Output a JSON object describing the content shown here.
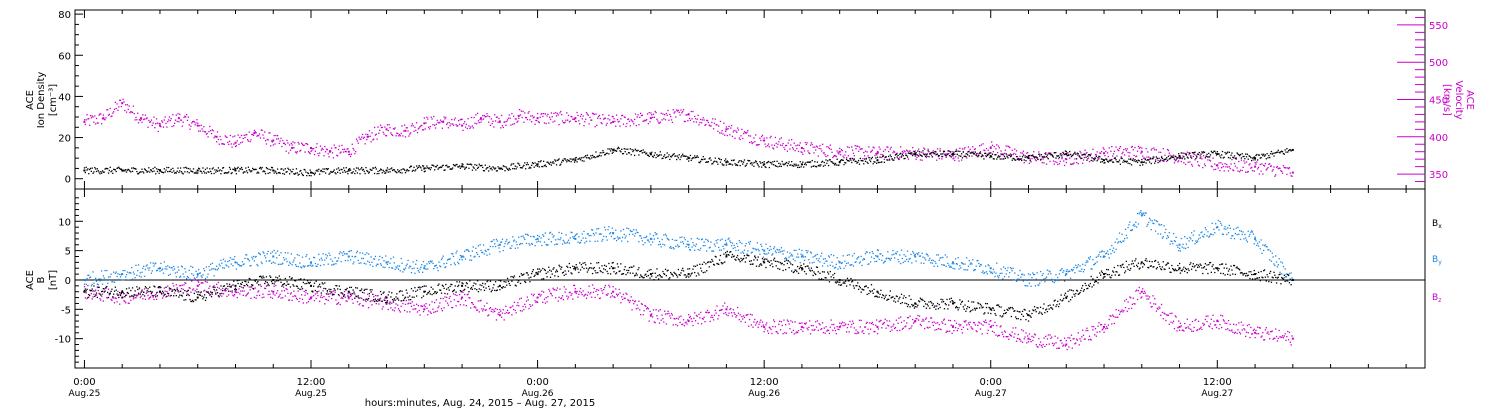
{
  "chart_data": [
    {
      "type": "scatter",
      "panel": "plasma",
      "ylabel": [
        "ACE",
        "Ion Density",
        "[cm⁻³]"
      ],
      "y2label": [
        "ACE",
        "Velocity",
        "[km/s]"
      ],
      "ylim": [
        -5,
        82
      ],
      "yticks": [
        0,
        20,
        40,
        60,
        80
      ],
      "y2lim": [
        330,
        570
      ],
      "y2ticks": [
        350,
        400,
        450,
        500,
        550
      ],
      "colors": {
        "density": "#000000",
        "velocity": "#cc00cc"
      },
      "series": [
        {
          "name": "Ion Density",
          "axis": "left",
          "x": [
            0,
            2,
            4,
            6,
            8,
            10,
            12,
            14,
            16,
            18,
            20,
            22,
            24,
            26,
            28,
            30,
            32,
            34,
            36,
            38,
            40,
            42,
            44,
            46,
            48,
            50,
            52,
            54,
            56,
            58,
            60,
            62,
            64
          ],
          "values": [
            4,
            4,
            4,
            4,
            4,
            4,
            3,
            4,
            4,
            5,
            6,
            5,
            7,
            9,
            14,
            12,
            10,
            8,
            7,
            7,
            8,
            9,
            12,
            12,
            11,
            10,
            12,
            9,
            8,
            11,
            12,
            10,
            14
          ]
        },
        {
          "name": "Velocity",
          "axis": "right",
          "x": [
            0,
            1,
            2,
            3,
            4,
            5,
            6,
            7,
            8,
            9,
            10,
            11,
            12,
            13,
            14,
            15,
            16,
            17,
            18,
            19,
            20,
            21,
            22,
            23,
            24,
            26,
            28,
            30,
            32,
            34,
            36,
            38,
            40,
            42,
            44,
            46,
            48,
            50,
            52,
            54,
            56,
            58,
            60,
            62,
            64
          ],
          "values": [
            420,
            425,
            445,
            425,
            415,
            425,
            415,
            400,
            392,
            405,
            395,
            385,
            385,
            380,
            380,
            400,
            410,
            408,
            418,
            420,
            415,
            425,
            420,
            428,
            425,
            425,
            420,
            425,
            430,
            410,
            395,
            385,
            380,
            378,
            378,
            375,
            385,
            372,
            370,
            378,
            380,
            373,
            362,
            360,
            352
          ]
        }
      ]
    },
    {
      "type": "scatter",
      "panel": "magnetic-field",
      "ylabel": [
        "ACE",
        "B",
        "[nT]"
      ],
      "ylim": [
        -15,
        15.5
      ],
      "yticks": [
        -10,
        -5,
        0,
        5,
        10
      ],
      "legend": [
        {
          "base": "B",
          "sub": "x",
          "color": "#000000"
        },
        {
          "base": "B",
          "sub": "y",
          "color": "#1e88e5"
        },
        {
          "base": "B",
          "sub": "z",
          "color": "#cc00cc"
        }
      ],
      "series": [
        {
          "name": "Bx",
          "color": "#000000",
          "x": [
            0,
            2,
            4,
            6,
            8,
            10,
            12,
            14,
            16,
            18,
            20,
            22,
            24,
            26,
            28,
            30,
            32,
            34,
            36,
            38,
            40,
            42,
            44,
            46,
            48,
            50,
            52,
            54,
            56,
            58,
            60,
            62,
            64
          ],
          "values": [
            -2,
            -2,
            -2,
            -3,
            -1,
            0,
            -1,
            -2,
            -3,
            -2,
            -1,
            -1,
            1,
            2,
            2,
            1,
            1,
            4,
            3,
            2,
            0,
            -2,
            -4,
            -4,
            -5,
            -6,
            -3,
            1,
            3,
            2,
            2,
            1,
            0
          ]
        },
        {
          "name": "By",
          "color": "#1e88e5",
          "x": [
            0,
            2,
            4,
            6,
            8,
            10,
            12,
            14,
            16,
            18,
            20,
            22,
            24,
            26,
            28,
            30,
            32,
            34,
            36,
            38,
            40,
            42,
            44,
            46,
            48,
            50,
            52,
            54,
            56,
            58,
            60,
            62,
            64
          ],
          "values": [
            0,
            1,
            2,
            1,
            3,
            4,
            3,
            4,
            3,
            2,
            4,
            6,
            7,
            7,
            8,
            7,
            6,
            6,
            5,
            4,
            3,
            4,
            4,
            3,
            2,
            0,
            1,
            4,
            11,
            6,
            9,
            7,
            0
          ]
        },
        {
          "name": "Bz",
          "color": "#cc00cc",
          "x": [
            0,
            2,
            4,
            6,
            8,
            10,
            12,
            14,
            16,
            18,
            20,
            22,
            24,
            26,
            28,
            30,
            32,
            34,
            36,
            38,
            40,
            42,
            44,
            46,
            48,
            50,
            52,
            54,
            56,
            58,
            60,
            62,
            64
          ],
          "values": [
            -2,
            -3,
            -2,
            -1,
            -2,
            -2,
            -3,
            -3,
            -4,
            -5,
            -3,
            -6,
            -3,
            -2,
            -2,
            -6,
            -7,
            -5,
            -8,
            -8,
            -8,
            -8,
            -7,
            -8,
            -8,
            -10,
            -11,
            -8,
            -2,
            -8,
            -7,
            -9,
            -10
          ]
        }
      ]
    }
  ],
  "xaxis": {
    "range_hours": [
      -0.5,
      71
    ],
    "ticks": [
      {
        "hours": 0,
        "time": "0:00",
        "date": "Aug.25"
      },
      {
        "hours": 12,
        "time": "12:00",
        "date": "Aug.25"
      },
      {
        "hours": 24,
        "time": "0:00",
        "date": "Aug.26"
      },
      {
        "hours": 36,
        "time": "12:00",
        "date": "Aug.26"
      },
      {
        "hours": 48,
        "time": "0:00",
        "date": "Aug.27"
      },
      {
        "hours": 60,
        "time": "12:00",
        "date": "Aug.27"
      }
    ],
    "xlabel": "hours:minutes, Aug. 24, 2015 – Aug. 27, 2015"
  }
}
